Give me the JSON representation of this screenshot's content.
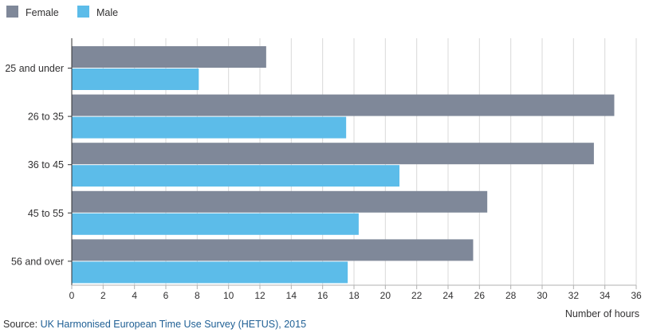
{
  "chart_data": {
    "type": "bar",
    "orientation": "horizontal",
    "categories": [
      "25 and under",
      "26 to 35",
      "36 to 45",
      "45 to 55",
      "56 and over"
    ],
    "series": [
      {
        "name": "Female",
        "color": "#7f8899",
        "values": [
          12.4,
          34.6,
          33.3,
          26.5,
          25.6
        ]
      },
      {
        "name": "Male",
        "color": "#5cbce9",
        "values": [
          8.1,
          17.5,
          20.9,
          18.3,
          17.6
        ]
      }
    ],
    "xlabel": "Number of hours",
    "ylabel": "",
    "xlim": [
      0,
      36
    ],
    "xticks": [
      0,
      2,
      4,
      6,
      8,
      10,
      12,
      14,
      16,
      18,
      20,
      22,
      24,
      26,
      28,
      30,
      32,
      34,
      36
    ],
    "grid": "vertical",
    "legend": "top-left"
  },
  "source": {
    "prefix": "Source: ",
    "text": "UK Harmonised European Time Use Survey (HETUS), 2015"
  },
  "colors": {
    "female": "#7f8899",
    "male": "#5cbce9",
    "link": "#206095"
  }
}
